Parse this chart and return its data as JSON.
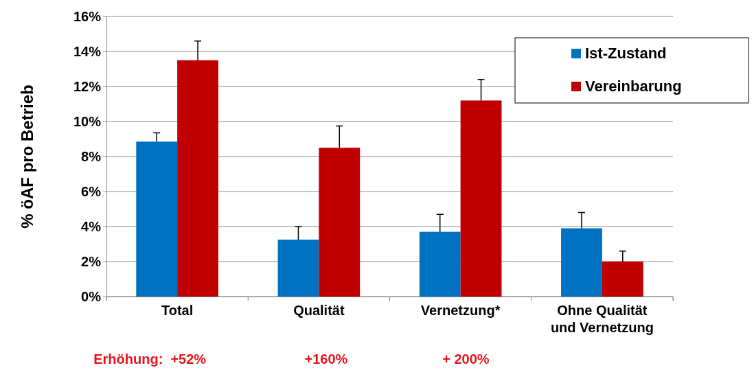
{
  "chart_data": {
    "type": "bar",
    "ylabel": "% öAF pro Betrieb",
    "categories": [
      "Total",
      "Qualität",
      "Vernetzung*",
      "Ohne Qualität und Vernetzung"
    ],
    "series": [
      {
        "name": "Ist-Zustand",
        "color": "#0070c0",
        "values": [
          8.85,
          3.25,
          3.7,
          3.9
        ],
        "errors": [
          [
            8.85,
            9.35
          ],
          [
            3.25,
            4.0
          ],
          [
            3.7,
            4.7
          ],
          [
            3.9,
            4.8
          ]
        ]
      },
      {
        "name": "Vereinbarung",
        "color": "#c00000",
        "values": [
          13.5,
          8.5,
          11.2,
          2.0
        ],
        "errors": [
          [
            13.5,
            14.6
          ],
          [
            8.5,
            9.75
          ],
          [
            11.2,
            12.4
          ],
          [
            2.0,
            2.6
          ]
        ]
      }
    ],
    "ylim": [
      0,
      16
    ],
    "yticks": [
      {
        "value": 0,
        "label": "0%"
      },
      {
        "value": 2,
        "label": "2%"
      },
      {
        "value": 4,
        "label": "4%"
      },
      {
        "value": 6,
        "label": "6%"
      },
      {
        "value": 8,
        "label": "8%"
      },
      {
        "value": 10,
        "label": "10%"
      },
      {
        "value": 12,
        "label": "12%"
      },
      {
        "value": 14,
        "label": "14%"
      },
      {
        "value": 16,
        "label": "16%"
      }
    ],
    "grid": "y",
    "legend": "top right",
    "annotations": [
      "Erhöhung:  +52%",
      "+160%",
      "+ 200%"
    ]
  }
}
